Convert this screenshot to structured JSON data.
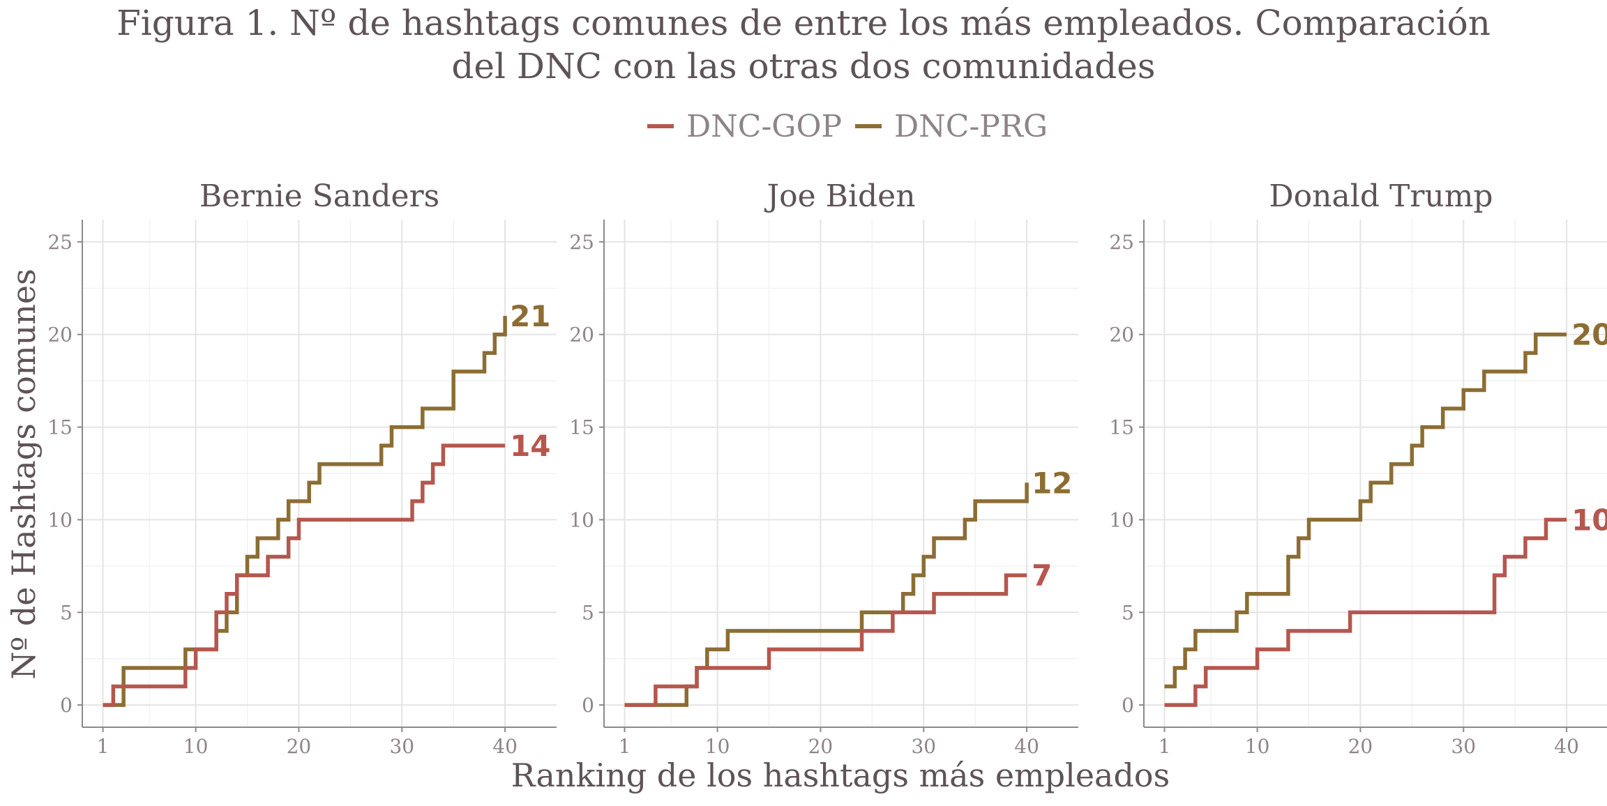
{
  "chart_data": {
    "type": "line",
    "title_line1": "Figura 1. Nº de hashtags comunes de entre los más empleados. Comparación",
    "title_line2": "del DNC con las otras dos comunidades",
    "xlabel": "Ranking de los hashtags más empleados",
    "ylabel": "Nº de Hashtags comunes",
    "xlim": [
      -1,
      45
    ],
    "ylim": [
      -1.2,
      26.2
    ],
    "xticks": [
      1,
      10,
      20,
      30,
      40
    ],
    "yticks": [
      0,
      5,
      10,
      15,
      20,
      25
    ],
    "grid": true,
    "legend_position": "top",
    "legend": [
      {
        "name": "DNC-GOP",
        "color": "#b5574e"
      },
      {
        "name": "DNC-PRG",
        "color": "#8c6d33"
      }
    ],
    "panels": [
      {
        "title": "Bernie Sanders",
        "series": [
          {
            "name": "DNC-GOP",
            "color": "#b5574e",
            "x": [
              1,
              2,
              3,
              4,
              5,
              6,
              7,
              8,
              9,
              10,
              11,
              12,
              13,
              14,
              15,
              16,
              17,
              18,
              19,
              20,
              21,
              22,
              23,
              24,
              25,
              26,
              27,
              28,
              29,
              30,
              31,
              32,
              33,
              34,
              35,
              36,
              37,
              38,
              39,
              40
            ],
            "y": [
              0,
              1,
              1,
              1,
              1,
              1,
              1,
              1,
              2,
              3,
              3,
              5,
              6,
              7,
              7,
              7,
              8,
              8,
              9,
              10,
              10,
              10,
              10,
              10,
              10,
              10,
              10,
              10,
              10,
              10,
              11,
              12,
              13,
              14,
              14,
              14,
              14,
              14,
              14,
              14
            ]
          },
          {
            "name": "DNC-PRG",
            "color": "#8c6d33",
            "x": [
              1,
              2,
              3,
              4,
              5,
              6,
              7,
              8,
              9,
              10,
              11,
              12,
              13,
              14,
              15,
              16,
              17,
              18,
              19,
              20,
              21,
              22,
              23,
              24,
              25,
              26,
              27,
              28,
              29,
              30,
              31,
              32,
              33,
              34,
              35,
              36,
              37,
              38,
              39,
              40
            ],
            "y": [
              0,
              0,
              2,
              2,
              2,
              2,
              2,
              2,
              3,
              3,
              3,
              4,
              5,
              7,
              8,
              9,
              9,
              10,
              11,
              11,
              12,
              13,
              13,
              13,
              13,
              13,
              13,
              14,
              15,
              15,
              15,
              16,
              16,
              16,
              18,
              18,
              18,
              19,
              20,
              21
            ]
          }
        ],
        "end_labels": [
          {
            "text": "21",
            "series": "DNC-PRG"
          },
          {
            "text": "14",
            "series": "DNC-GOP"
          }
        ]
      },
      {
        "title": "Joe Biden",
        "series": [
          {
            "name": "DNC-GOP",
            "color": "#b5574e",
            "x": [
              1,
              2,
              3,
              4,
              5,
              6,
              7,
              8,
              9,
              10,
              11,
              12,
              13,
              14,
              15,
              16,
              17,
              18,
              19,
              20,
              21,
              22,
              23,
              24,
              25,
              26,
              27,
              28,
              29,
              30,
              31,
              32,
              33,
              34,
              35,
              36,
              37,
              38,
              39,
              40
            ],
            "y": [
              0,
              0,
              0,
              1,
              1,
              1,
              1,
              2,
              2,
              2,
              2,
              2,
              2,
              2,
              3,
              3,
              3,
              3,
              3,
              3,
              3,
              3,
              3,
              4,
              4,
              4,
              5,
              5,
              5,
              5,
              6,
              6,
              6,
              6,
              6,
              6,
              6,
              7,
              7,
              7
            ]
          },
          {
            "name": "DNC-PRG",
            "color": "#8c6d33",
            "x": [
              1,
              2,
              3,
              4,
              5,
              6,
              7,
              8,
              9,
              10,
              11,
              12,
              13,
              14,
              15,
              16,
              17,
              18,
              19,
              20,
              21,
              22,
              23,
              24,
              25,
              26,
              27,
              28,
              29,
              30,
              31,
              32,
              33,
              34,
              35,
              36,
              37,
              38,
              39,
              40
            ],
            "y": [
              0,
              0,
              0,
              0,
              0,
              0,
              1,
              2,
              3,
              3,
              4,
              4,
              4,
              4,
              4,
              4,
              4,
              4,
              4,
              4,
              4,
              4,
              4,
              5,
              5,
              5,
              5,
              6,
              7,
              8,
              9,
              9,
              9,
              10,
              11,
              11,
              11,
              11,
              11,
              12
            ]
          }
        ],
        "end_labels": [
          {
            "text": "12",
            "series": "DNC-PRG"
          },
          {
            "text": "7",
            "series": "DNC-GOP"
          }
        ]
      },
      {
        "title": "Donald Trump",
        "series": [
          {
            "name": "DNC-GOP",
            "color": "#b5574e",
            "x": [
              1,
              2,
              3,
              4,
              5,
              6,
              7,
              8,
              9,
              10,
              11,
              12,
              13,
              14,
              15,
              16,
              17,
              18,
              19,
              20,
              21,
              22,
              23,
              24,
              25,
              26,
              27,
              28,
              29,
              30,
              31,
              32,
              33,
              34,
              35,
              36,
              37,
              38,
              39,
              40
            ],
            "y": [
              0,
              0,
              0,
              1,
              2,
              2,
              2,
              2,
              2,
              3,
              3,
              3,
              4,
              4,
              4,
              4,
              4,
              4,
              5,
              5,
              5,
              5,
              5,
              5,
              5,
              5,
              5,
              5,
              5,
              5,
              5,
              5,
              7,
              8,
              8,
              9,
              9,
              10,
              10,
              10
            ]
          },
          {
            "name": "DNC-PRG",
            "color": "#8c6d33",
            "x": [
              1,
              2,
              3,
              4,
              5,
              6,
              7,
              8,
              9,
              10,
              11,
              12,
              13,
              14,
              15,
              16,
              17,
              18,
              19,
              20,
              21,
              22,
              23,
              24,
              25,
              26,
              27,
              28,
              29,
              30,
              31,
              32,
              33,
              34,
              35,
              36,
              37,
              38,
              39,
              40
            ],
            "y": [
              1,
              2,
              3,
              4,
              4,
              4,
              4,
              5,
              6,
              6,
              6,
              6,
              8,
              9,
              10,
              10,
              10,
              10,
              10,
              11,
              12,
              12,
              13,
              13,
              14,
              15,
              15,
              16,
              16,
              17,
              17,
              18,
              18,
              18,
              18,
              19,
              20,
              20,
              20,
              20
            ]
          }
        ],
        "end_labels": [
          {
            "text": "20",
            "series": "DNC-PRG"
          },
          {
            "text": "10",
            "series": "DNC-GOP"
          }
        ]
      }
    ]
  }
}
